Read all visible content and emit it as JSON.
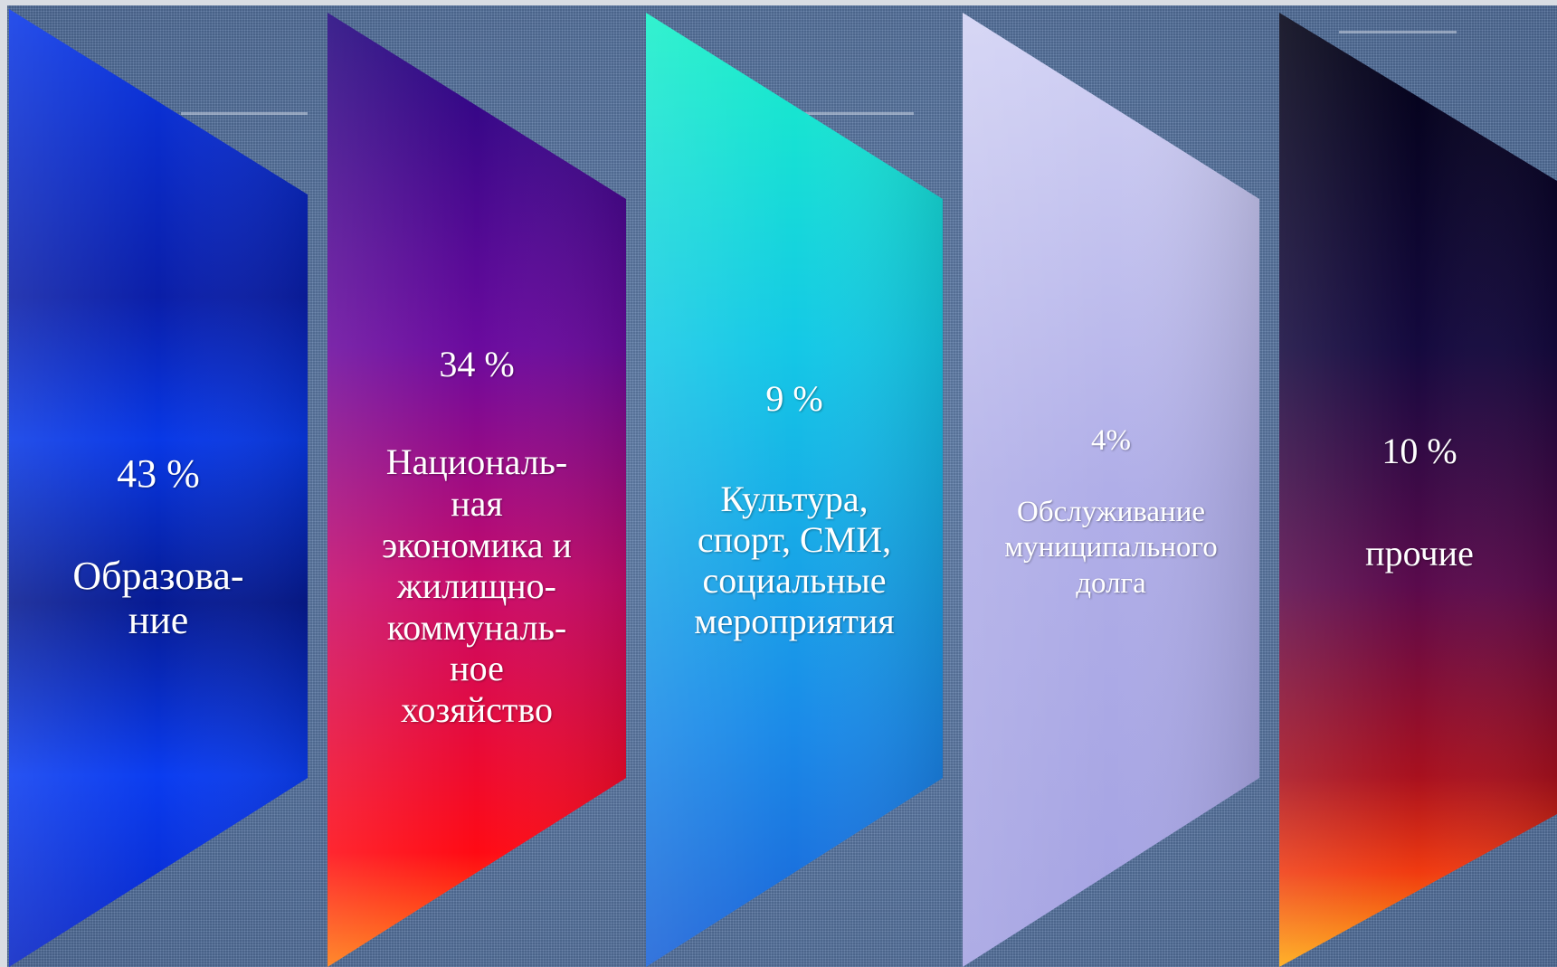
{
  "segments": [
    {
      "percent": "43 %",
      "label": "Образова-\nние",
      "color_top": "#0a2fd6",
      "color_bottom": "#0b2be0"
    },
    {
      "percent": "34 %",
      "label": "Националь-\nная\nэкономика и\nжилищно-\nкоммуналь-\nное\nхозяйство",
      "color_top": "#2a0a8a",
      "color_bottom": "#ff1010"
    },
    {
      "percent": "9 %",
      "label": "Культура,\nспорт, СМИ,\nсоциальные\nмероприятия",
      "color_top": "#14e8d0",
      "color_bottom": "#1a74e0"
    },
    {
      "percent": "4%",
      "label": "Обслуживание\nмуниципального\nдолга",
      "color_top": "#c8c8ee",
      "color_bottom": "#a8a6e4"
    },
    {
      "percent": "10 %",
      "label": "прочие",
      "color_top": "#03031e",
      "color_bottom": "#ff9a10"
    }
  ]
}
